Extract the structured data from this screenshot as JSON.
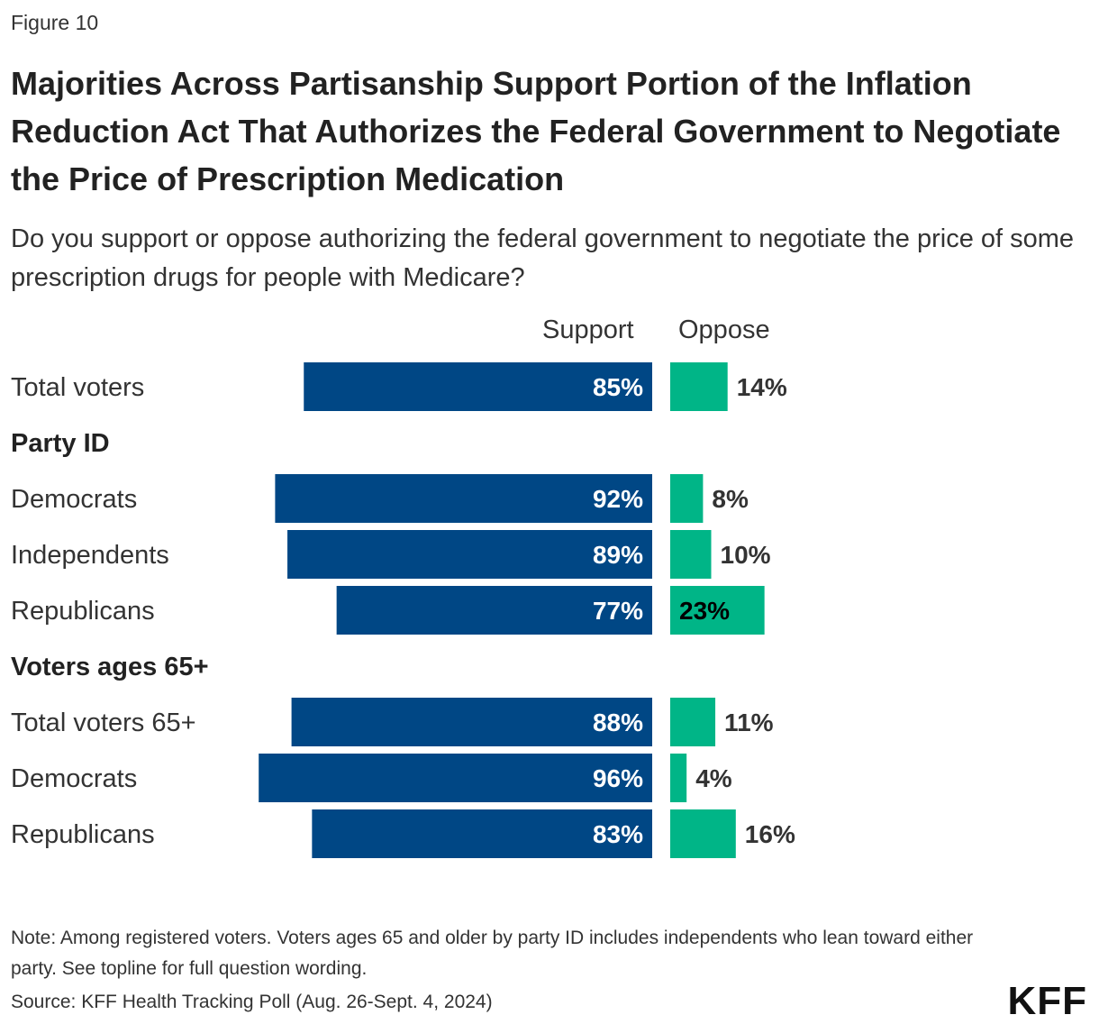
{
  "figure_label": "Figure 10",
  "title": "Majorities Across Partisanship Support Portion of the Inflation Reduction Act That Authorizes the Federal Government to Negotiate the Price of Prescription Medication",
  "subtitle": "Do you support or oppose authorizing the federal government to negotiate the price of some prescription drugs for people with Medicare?",
  "note": "Note: Among registered voters. Voters ages 65 and older by party ID includes independents who lean toward either party. See topline for full question wording.",
  "source": "Source: KFF Health Tracking Poll (Aug. 26-Sept. 4, 2024)",
  "logo": "KFF",
  "colors": {
    "support": "#004785",
    "oppose": "#00B587",
    "text": "#222222",
    "support_label": "#ffffff"
  },
  "chart_data": {
    "type": "bar",
    "orientation": "horizontal-diverging",
    "columns": [
      "Support",
      "Oppose"
    ],
    "unit": "%",
    "rows": [
      {
        "label": "Total voters",
        "kind": "data",
        "support": 85,
        "oppose": 14
      },
      {
        "label": "Party ID",
        "kind": "group"
      },
      {
        "label": "Democrats",
        "kind": "data",
        "support": 92,
        "oppose": 8
      },
      {
        "label": "Independents",
        "kind": "data",
        "support": 89,
        "oppose": 10
      },
      {
        "label": "Republicans",
        "kind": "data",
        "support": 77,
        "oppose": 23,
        "oppose_label_inside": true
      },
      {
        "label": "Voters ages 65+",
        "kind": "group"
      },
      {
        "label": "Total voters 65+",
        "kind": "data",
        "support": 88,
        "oppose": 11
      },
      {
        "label": "Democrats",
        "kind": "data",
        "support": 96,
        "oppose": 4
      },
      {
        "label": "Republicans",
        "kind": "data",
        "support": 83,
        "oppose": 16
      }
    ]
  }
}
